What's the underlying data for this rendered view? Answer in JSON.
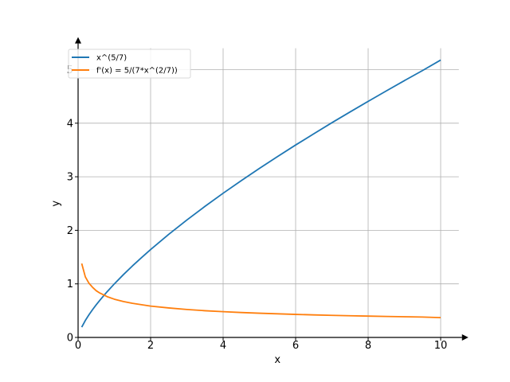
{
  "chart_data": {
    "type": "line",
    "xlabel": "x",
    "ylabel": "y",
    "xlim": [
      0,
      10.5
    ],
    "ylim": [
      0,
      5.4
    ],
    "xticks": [
      0,
      2,
      4,
      6,
      8,
      10
    ],
    "yticks": [
      0,
      1,
      2,
      3,
      4,
      5
    ],
    "grid": true,
    "legend_position": "top-left",
    "series": [
      {
        "name": "x^(5/7)",
        "color": "#1f77b4",
        "x": [
          0.1,
          0.2,
          0.3,
          0.4,
          0.5,
          0.6,
          0.8,
          1.0,
          1.25,
          1.5,
          1.75,
          2.0,
          2.5,
          3.0,
          3.5,
          4.0,
          4.5,
          5.0,
          5.5,
          6.0,
          6.5,
          7.0,
          7.5,
          8.0,
          8.5,
          9.0,
          9.5,
          10.0
        ],
        "y": [
          0.193,
          0.317,
          0.423,
          0.52,
          0.61,
          0.694,
          0.853,
          1.0,
          1.173,
          1.336,
          1.491,
          1.641,
          1.925,
          2.193,
          2.448,
          2.692,
          2.928,
          3.156,
          3.377,
          3.593,
          3.802,
          4.009,
          4.21,
          4.408,
          4.603,
          4.795,
          4.983,
          5.179
        ]
      },
      {
        "name": "f'(x) = 5/(7*x^(2/7))",
        "color": "#ff7f0e",
        "x": [
          0.1,
          0.2,
          0.3,
          0.4,
          0.5,
          0.6,
          0.8,
          1.0,
          1.25,
          1.5,
          1.75,
          2.0,
          2.5,
          3.0,
          3.5,
          4.0,
          4.5,
          5.0,
          5.5,
          6.0,
          6.5,
          7.0,
          7.5,
          8.0,
          8.5,
          9.0,
          9.5,
          10.0
        ],
        "y": [
          1.38,
          1.13,
          1.012,
          0.935,
          0.872,
          0.829,
          0.762,
          0.714,
          0.67,
          0.637,
          0.611,
          0.585,
          0.551,
          0.522,
          0.499,
          0.481,
          0.465,
          0.452,
          0.441,
          0.43,
          0.421,
          0.412,
          0.405,
          0.398,
          0.392,
          0.386,
          0.381,
          0.37
        ]
      }
    ]
  }
}
